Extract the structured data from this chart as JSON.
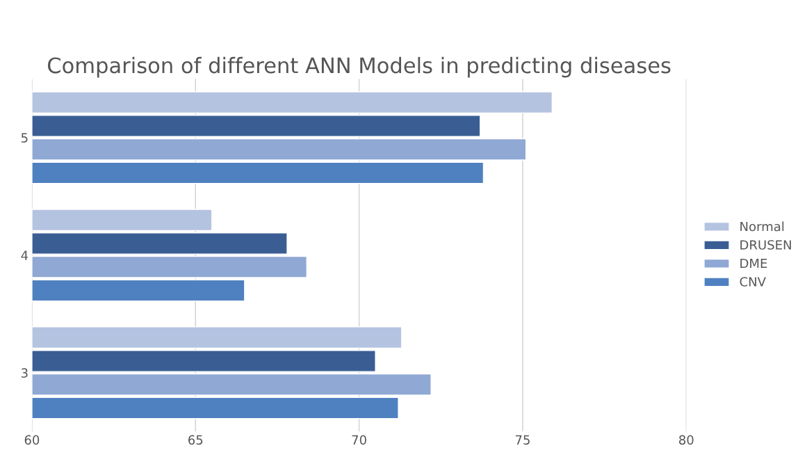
{
  "chart_data": {
    "type": "bar",
    "orientation": "horizontal",
    "title": "Comparison of different ANN Models in predicting diseases",
    "categories": [
      "5",
      "4",
      "3"
    ],
    "series": [
      {
        "name": "Normal",
        "color": "#b4c3e0",
        "values": [
          75.9,
          65.5,
          71.3
        ]
      },
      {
        "name": "DRUSEN",
        "color": "#3a5e94",
        "values": [
          73.7,
          67.8,
          70.5
        ]
      },
      {
        "name": "DME",
        "color": "#8fa8d4",
        "values": [
          75.1,
          68.4,
          72.2
        ]
      },
      {
        "name": "CNV",
        "color": "#4f81c0",
        "values": [
          73.8,
          66.5,
          71.2
        ]
      }
    ],
    "xlim": [
      60,
      80
    ],
    "xticks": [
      60,
      65,
      70,
      75,
      80
    ],
    "grid": "x",
    "legend": "right"
  }
}
